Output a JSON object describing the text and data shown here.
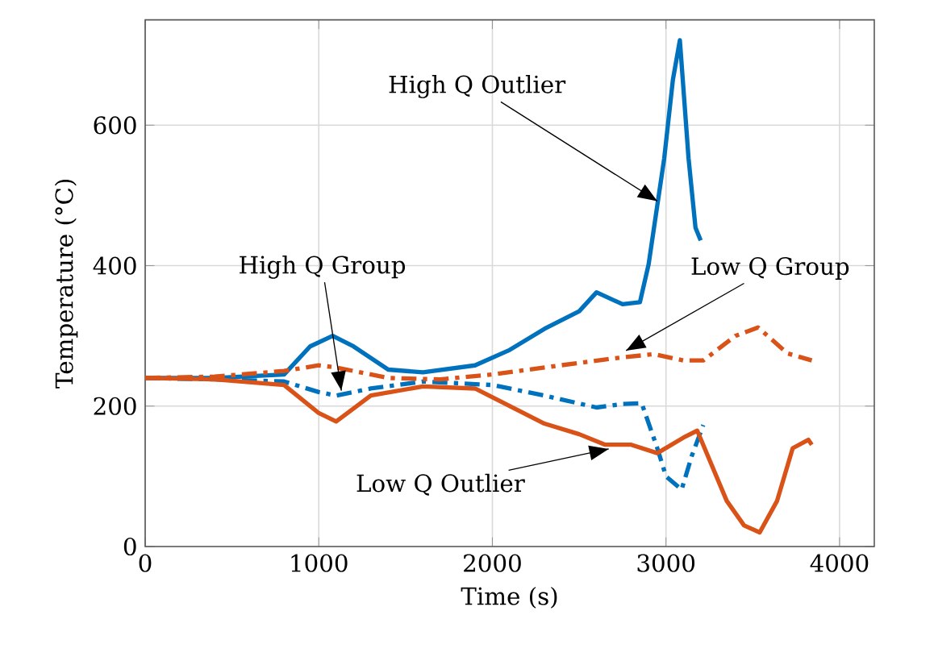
{
  "chart_data": {
    "type": "line",
    "xlabel": "Time (s)",
    "ylabel": "Temperature (°C)",
    "xlim": [
      0,
      4200
    ],
    "ylim": [
      0,
      750
    ],
    "xticks": [
      0,
      1000,
      2000,
      3000,
      4000
    ],
    "yticks": [
      0,
      200,
      400,
      600
    ],
    "grid": true,
    "series": [
      {
        "color": "#0072bd",
        "line_style": "solid",
        "x": [
          0,
          400,
          800,
          950,
          1080,
          1200,
          1400,
          1600,
          1900,
          2100,
          2300,
          2500,
          2600,
          2750,
          2850,
          2900,
          2990,
          3040,
          3080,
          3130,
          3170,
          3200
        ],
        "values": [
          240,
          240,
          245,
          285,
          300,
          285,
          252,
          248,
          258,
          280,
          310,
          335,
          362,
          345,
          348,
          402,
          553,
          665,
          721,
          553,
          454,
          436
        ]
      },
      {
        "color": "#0072bd",
        "line_style": "dashed",
        "x": [
          0,
          400,
          800,
          1000,
          1100,
          1300,
          1600,
          2000,
          2300,
          2600,
          2750,
          2860,
          2950,
          3000,
          3090,
          3150,
          3215
        ],
        "values": [
          240,
          238,
          235,
          220,
          215,
          225,
          235,
          230,
          215,
          198,
          203,
          204,
          140,
          100,
          81,
          130,
          173
        ]
      },
      {
        "color": "#d95319",
        "line_style": "solid",
        "x": [
          0,
          400,
          800,
          1000,
          1100,
          1300,
          1600,
          1900,
          2100,
          2300,
          2500,
          2650,
          2800,
          2950,
          3100,
          3180,
          3350,
          3450,
          3540,
          3640,
          3730,
          3820,
          3840
        ],
        "values": [
          240,
          238,
          230,
          190,
          178,
          215,
          228,
          225,
          200,
          175,
          160,
          145,
          145,
          133,
          155,
          165,
          65,
          30,
          20,
          65,
          140,
          152,
          145
        ]
      },
      {
        "color": "#d95319",
        "line_style": "dashed",
        "x": [
          0,
          400,
          800,
          1000,
          1100,
          1400,
          1700,
          2000,
          2300,
          2700,
          2930,
          3100,
          3215,
          3400,
          3530,
          3700,
          3840
        ],
        "values": [
          240,
          242,
          250,
          258,
          255,
          240,
          238,
          245,
          255,
          268,
          274,
          265,
          265,
          300,
          312,
          275,
          265
        ]
      }
    ],
    "annotations": [
      {
        "text": "High Q Outlier",
        "x": 2950,
        "y": 492
      },
      {
        "text": "High Q Group",
        "x": 1130,
        "y": 222
      },
      {
        "text": "Low Q Group",
        "x": 2770,
        "y": 279
      },
      {
        "text": "Low Q Outlier",
        "x": 2670,
        "y": 139
      }
    ]
  }
}
